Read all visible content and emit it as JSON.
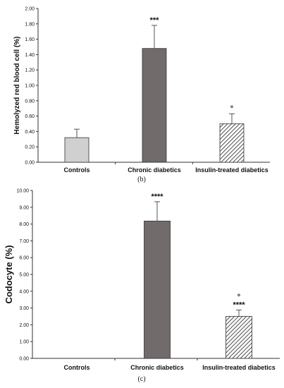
{
  "chart_data": [
    {
      "type": "bar",
      "panel_label": "(b)",
      "ylabel": "Hemolyzed red blood cell (%)",
      "categories": [
        "Controls",
        "Chronic diabetics",
        "Insulin-treated diabetics"
      ],
      "values": [
        0.32,
        1.48,
        0.5
      ],
      "error": [
        0.11,
        0.3,
        0.13
      ],
      "annotations": [
        "",
        "***",
        "°"
      ],
      "ylim": [
        0,
        2.0
      ],
      "yticks": [
        "0.00",
        "0.20",
        "0.40",
        "0.60",
        "0.80",
        "1.00",
        "1.20",
        "1.40",
        "1.60",
        "1.80",
        "2.00"
      ],
      "fills": [
        "#d0d0d0",
        "#716b6b",
        "hatch"
      ],
      "grid": false
    },
    {
      "type": "bar",
      "panel_label": "(c)",
      "ylabel": "Codocyte (%)",
      "categories": [
        "Controls",
        "Chronic diabetics",
        "Insulin-treated diabetics"
      ],
      "values": [
        0,
        8.18,
        2.5
      ],
      "error": [
        0,
        1.15,
        0.38
      ],
      "annotations": [
        "",
        "****",
        "°\n****"
      ],
      "ylim": [
        0,
        10.0
      ],
      "yticks": [
        "0.00",
        "1.00",
        "2.00",
        "3.00",
        "4.00",
        "5.00",
        "6.00",
        "7.00",
        "8.00",
        "9.00",
        "10.00"
      ],
      "fills": [
        "#d0d0d0",
        "#716b6b",
        "hatch"
      ],
      "grid": false
    }
  ]
}
